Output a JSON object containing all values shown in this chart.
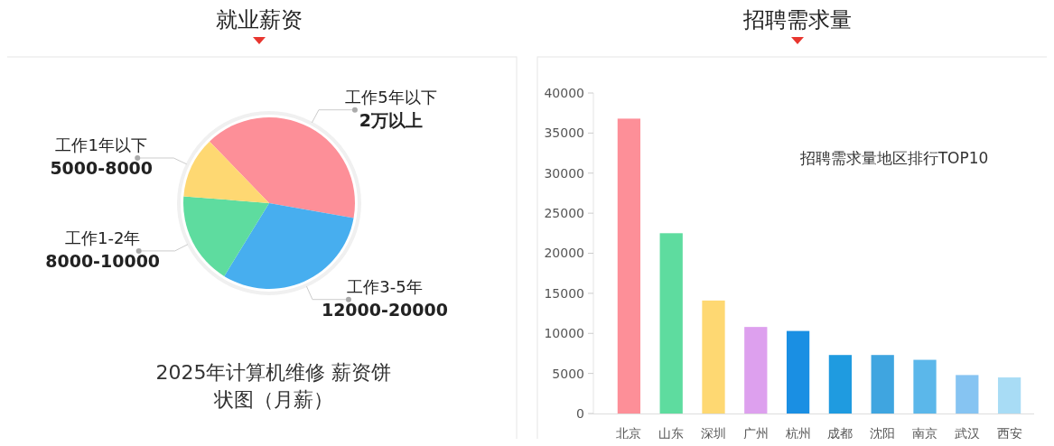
{
  "chart_data": [
    {
      "type": "pie",
      "title": "就业薪资",
      "subtitle": "2025年计算机维修 薪资饼状图（月薪）",
      "categories": [
        "工作5年以下\n2万以上",
        "工作3-5年\n12000-20000",
        "工作1-2年\n8000-10000",
        "工作1年以下\n5000-8000"
      ],
      "values": [
        40,
        31,
        17.5,
        11.5
      ],
      "colors": [
        "#fd8f98",
        "#47aeef",
        "#5edc9f",
        "#fed872"
      ]
    },
    {
      "type": "bar",
      "title": "招聘需求量",
      "subtitle": "招聘需求量地区排行TOP10",
      "categories": [
        "北京",
        "山东",
        "深圳",
        "广州",
        "杭州",
        "成都",
        "沈阳",
        "南京",
        "武汉",
        "西安"
      ],
      "values": [
        36800,
        22500,
        14100,
        10800,
        10300,
        7300,
        7300,
        6700,
        4800,
        4500
      ],
      "colors": [
        "#fd8f98",
        "#5edc9f",
        "#fed872",
        "#dda0ee",
        "#1a8fe3",
        "#1f9be0",
        "#3fa5e0",
        "#5bb7ea",
        "#86c4f2",
        "#a8dcf5"
      ],
      "ylim": [
        0,
        40000
      ],
      "yticks": [
        0,
        5000,
        10000,
        15000,
        20000,
        25000,
        30000,
        35000,
        40000
      ]
    }
  ]
}
